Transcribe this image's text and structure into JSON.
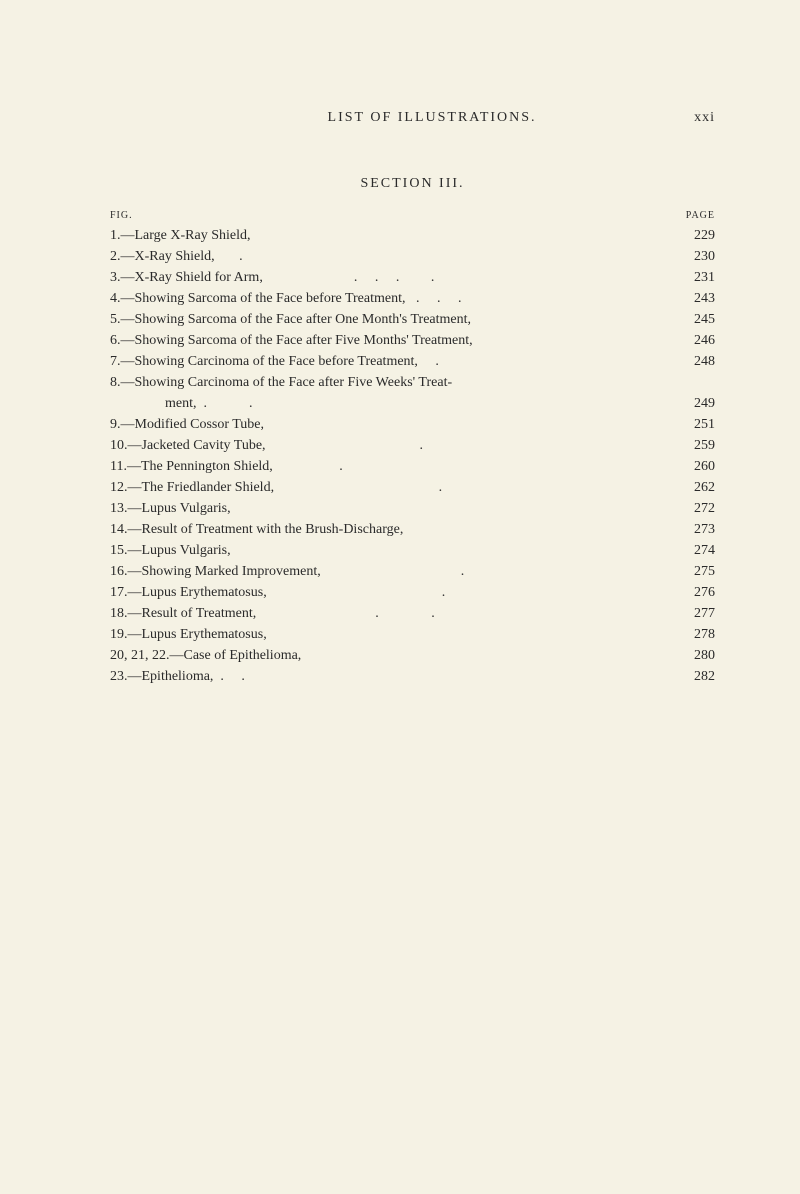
{
  "header": {
    "title": "LIST OF ILLUSTRATIONS.",
    "pageRoman": "xxi"
  },
  "sectionTitle": "SECTION III.",
  "columnHeaders": {
    "left": "FIG.",
    "right": "PAGE"
  },
  "entries": [
    {
      "text": "1.—Large X-Ray Shield,",
      "page": "229"
    },
    {
      "text": "2.—X-Ray Shield,       .",
      "page": "230"
    },
    {
      "text": "3.—X-Ray Shield for Arm,                          .     .     .         . ",
      "page": "231"
    },
    {
      "text": "4.—Showing Sarcoma of the Face before Treatment,   .     .     . ",
      "page": "243"
    },
    {
      "text": "5.—Showing Sarcoma of the Face after One Month's Treatment,",
      "page": "245"
    },
    {
      "text": "6.—Showing Sarcoma of the Face after Five Months' Treatment,",
      "page": "246"
    },
    {
      "text": "7.—Showing Carcinoma of the Face before Treatment,     .",
      "page": "248"
    },
    {
      "text": "8.—Showing Carcinoma of the Face after Five Weeks' Treat-",
      "page": ""
    },
    {
      "text": "ment,  .            .",
      "page": "249",
      "indent": true
    },
    {
      "text": "9.—Modified Cossor Tube,",
      "page": "251"
    },
    {
      "text": "10.—Jacketed Cavity Tube,                                            .",
      "page": "259"
    },
    {
      "text": "11.—The Pennington Shield,                   .",
      "page": "260"
    },
    {
      "text": "12.—The Friedlander Shield,                                               . ",
      "page": "262"
    },
    {
      "text": "13.—Lupus Vulgaris,",
      "page": "272"
    },
    {
      "text": "14.—Result of Treatment with the Brush-Discharge,",
      "page": "273"
    },
    {
      "text": "15.—Lupus Vulgaris,",
      "page": "274"
    },
    {
      "text": "16.—Showing Marked Improvement,                                        . ",
      "page": "275"
    },
    {
      "text": "17.—Lupus Erythematosus,                                                  . ",
      "page": "276"
    },
    {
      "text": "18.—Result of Treatment,                                  .               . ",
      "page": "277"
    },
    {
      "text": "19.—Lupus Erythematosus,",
      "page": "278"
    },
    {
      "text": "20, 21, 22.—Case of Epithelioma,",
      "page": "280"
    },
    {
      "text": "23.—Epithelioma,  .     .",
      "page": "282"
    }
  ]
}
